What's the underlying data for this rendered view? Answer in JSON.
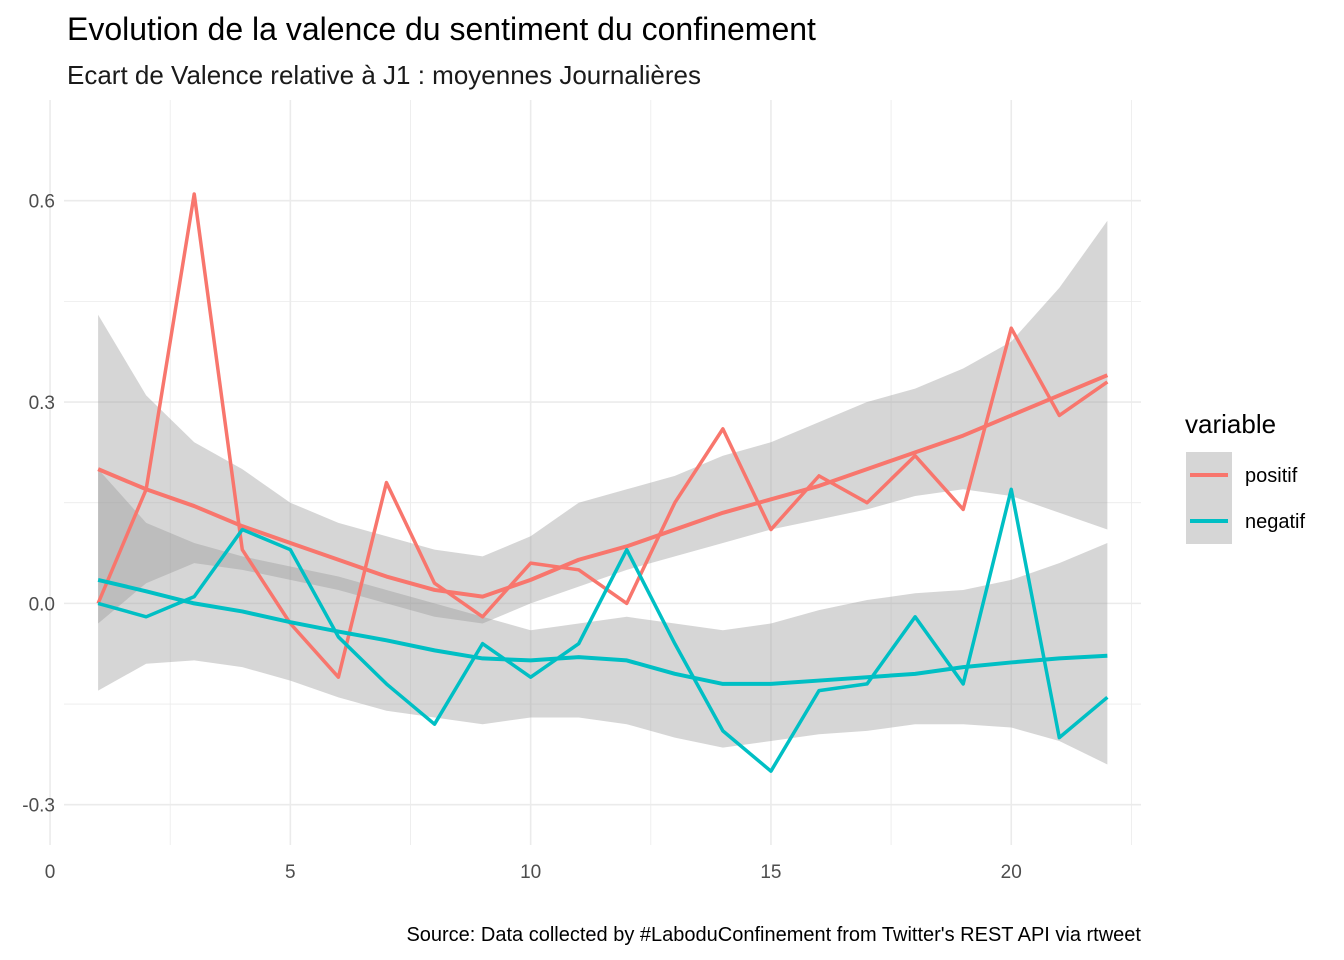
{
  "chart_data": {
    "type": "line",
    "title": "Evolution de la valence du sentiment du confinement",
    "subtitle": "Ecart de Valence relative à J1 : moyennes Journalières",
    "caption": "Source: Data collected by #LaboduConfinement from Twitter's REST API via rtweet",
    "xlabel": "",
    "ylabel": "",
    "xlim": [
      0,
      23
    ],
    "ylim": [
      -0.36,
      0.75
    ],
    "x_ticks": [
      0,
      5,
      10,
      15,
      20
    ],
    "y_ticks": [
      -0.3,
      0.0,
      0.3,
      0.6
    ],
    "y_tick_labels": [
      "-0.3",
      "0.0",
      "0.3",
      "0.6"
    ],
    "grid": true,
    "legend": {
      "title": "variable",
      "position": "right"
    },
    "x": [
      1,
      2,
      3,
      4,
      5,
      6,
      7,
      8,
      9,
      10,
      11,
      12,
      13,
      14,
      15,
      16,
      17,
      18,
      19,
      20,
      21,
      22
    ],
    "series": [
      {
        "name": "positif",
        "color": "#F8766D",
        "values": [
          0.0,
          0.17,
          0.61,
          0.08,
          -0.03,
          -0.11,
          0.18,
          0.03,
          -0.02,
          0.06,
          0.05,
          0.0,
          0.15,
          0.26,
          0.11,
          0.19,
          0.15,
          0.22,
          0.14,
          0.41,
          0.28,
          0.33
        ],
        "smooth": [
          0.2,
          0.17,
          0.145,
          0.115,
          0.09,
          0.065,
          0.04,
          0.02,
          0.01,
          0.035,
          0.065,
          0.085,
          0.11,
          0.135,
          0.155,
          0.175,
          0.2,
          0.225,
          0.25,
          0.28,
          0.31,
          0.34
        ],
        "smooth_lower": [
          -0.03,
          0.03,
          0.06,
          0.05,
          0.035,
          0.02,
          0.0,
          -0.02,
          -0.03,
          0.0,
          0.025,
          0.05,
          0.07,
          0.09,
          0.11,
          0.125,
          0.14,
          0.16,
          0.17,
          0.16,
          0.135,
          0.11
        ],
        "smooth_upper": [
          0.43,
          0.31,
          0.24,
          0.2,
          0.15,
          0.12,
          0.1,
          0.08,
          0.07,
          0.1,
          0.15,
          0.17,
          0.19,
          0.22,
          0.24,
          0.27,
          0.3,
          0.32,
          0.35,
          0.39,
          0.47,
          0.57
        ]
      },
      {
        "name": "negatif",
        "color": "#00BFC4",
        "values": [
          0.0,
          -0.02,
          0.01,
          0.11,
          0.08,
          -0.05,
          -0.12,
          -0.18,
          -0.06,
          -0.11,
          -0.06,
          0.08,
          -0.06,
          -0.19,
          -0.25,
          -0.13,
          -0.12,
          -0.02,
          -0.12,
          0.17,
          -0.2,
          -0.14
        ],
        "smooth": [
          0.035,
          0.018,
          0.0,
          -0.012,
          -0.028,
          -0.042,
          -0.055,
          -0.07,
          -0.082,
          -0.085,
          -0.08,
          -0.085,
          -0.105,
          -0.12,
          -0.12,
          -0.115,
          -0.11,
          -0.105,
          -0.095,
          -0.088,
          -0.082,
          -0.078
        ],
        "smooth_lower": [
          -0.13,
          -0.09,
          -0.085,
          -0.095,
          -0.115,
          -0.14,
          -0.16,
          -0.17,
          -0.18,
          -0.17,
          -0.17,
          -0.18,
          -0.2,
          -0.215,
          -0.205,
          -0.195,
          -0.19,
          -0.18,
          -0.18,
          -0.185,
          -0.205,
          -0.24
        ],
        "smooth_upper": [
          0.2,
          0.12,
          0.09,
          0.07,
          0.055,
          0.04,
          0.02,
          0.0,
          -0.02,
          -0.04,
          -0.03,
          -0.02,
          -0.03,
          -0.04,
          -0.03,
          -0.01,
          0.005,
          0.015,
          0.02,
          0.035,
          0.06,
          0.09
        ]
      }
    ],
    "band_color": "#999999"
  }
}
